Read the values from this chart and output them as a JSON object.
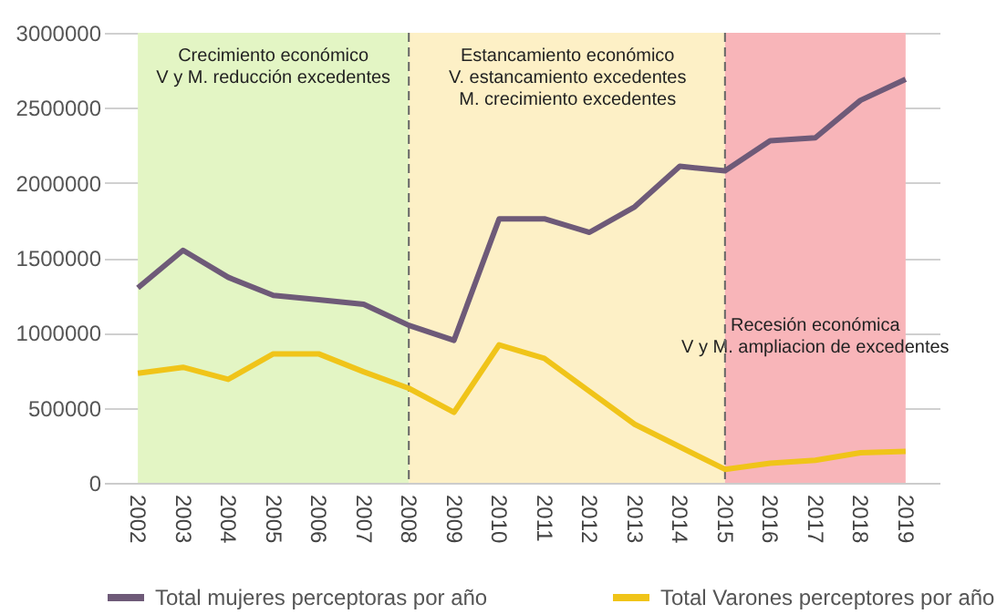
{
  "chart_data": {
    "type": "line",
    "categories": [
      "2002",
      "2003",
      "2004",
      "2005",
      "2006",
      "2007",
      "2008",
      "2009",
      "2010",
      "2011",
      "2012",
      "2013",
      "2014",
      "2015",
      "2016",
      "2017",
      "2018",
      "2019"
    ],
    "series": [
      {
        "name": "Total mujeres perceptoras por año",
        "color": "#6e5a78",
        "values": [
          1300000,
          1550000,
          1370000,
          1250000,
          1220000,
          1190000,
          1050000,
          950000,
          1760000,
          1760000,
          1670000,
          1840000,
          2110000,
          2080000,
          2280000,
          2300000,
          2550000,
          2690000
        ]
      },
      {
        "name": "Total Varones perceptores por año",
        "color": "#f0c419",
        "values": [
          730000,
          770000,
          690000,
          860000,
          860000,
          740000,
          630000,
          470000,
          920000,
          830000,
          610000,
          390000,
          240000,
          90000,
          130000,
          150000,
          200000,
          210000
        ]
      }
    ],
    "ylim": [
      0,
      3000000
    ],
    "yticks": [
      0,
      500000,
      1000000,
      1500000,
      2000000,
      2500000,
      3000000
    ],
    "grid": "y",
    "legend": "bottom",
    "line_style": "solid",
    "marker": "none",
    "bands": [
      {
        "axis": "x",
        "from": "2002",
        "to": "2008",
        "label": "Crecimiento económico\nV y M. reducción excedentes",
        "color": "#e3f5c4"
      },
      {
        "axis": "x",
        "from": "2008",
        "to": "2015",
        "label": "Estancamiento económico\nV. estancamiento excedentes\nM. crecimiento excedentes",
        "color": "#fdf0c6"
      },
      {
        "axis": "x",
        "from": "2015",
        "to": "2019",
        "label": "Recesión económica\nV y M. ampliacion de excedentes",
        "color": "#f8b5b9"
      }
    ],
    "ref_lines": [
      {
        "axis": "x",
        "value": "2008",
        "line_style": "dashed",
        "color": "#666666"
      },
      {
        "axis": "x",
        "value": "2015",
        "line_style": "dashed",
        "color": "#666666"
      }
    ]
  }
}
